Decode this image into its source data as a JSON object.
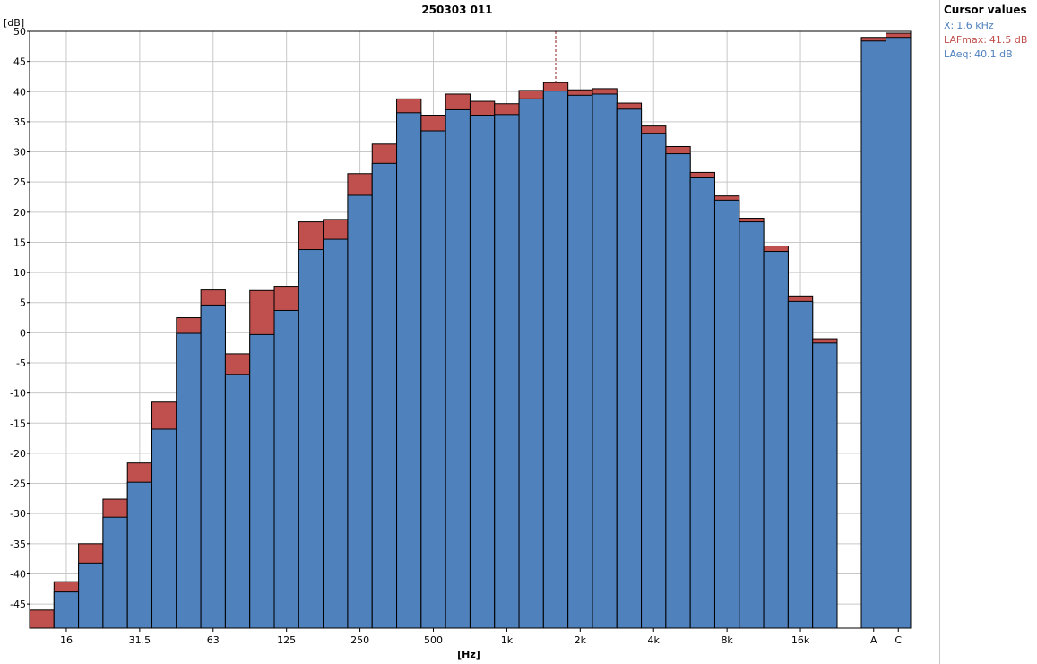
{
  "chart_data": {
    "type": "bar",
    "title": "250303 011",
    "ylabel": "[dB]",
    "xlabel": "[Hz]",
    "ylim": [
      -49,
      50
    ],
    "yticks": [
      50,
      45,
      40,
      35,
      30,
      25,
      20,
      15,
      10,
      5,
      0,
      -5,
      -10,
      -15,
      -20,
      -25,
      -30,
      -35,
      -40,
      -45
    ],
    "grid": true,
    "categories": [
      "12.5",
      "16",
      "20",
      "25",
      "31.5",
      "40",
      "50",
      "63",
      "80",
      "100",
      "125",
      "160",
      "200",
      "250",
      "315",
      "400",
      "500",
      "630",
      "800",
      "1k",
      "1.25k",
      "1.6k",
      "2k",
      "2.5k",
      "3.15k",
      "4k",
      "5k",
      "6.3k",
      "8k",
      "10k",
      "12.5k",
      "16k",
      "20k",
      "A",
      "C"
    ],
    "xtick_labels": [
      "16",
      "31.5",
      "63",
      "125",
      "250",
      "500",
      "1k",
      "2k",
      "4k",
      "8k",
      "16k",
      "A",
      "C"
    ],
    "series": [
      {
        "name": "LAFmax",
        "color": "#c0504d",
        "values": [
          -46.0,
          -41.3,
          -35.0,
          -27.6,
          -21.6,
          -11.5,
          2.5,
          7.1,
          -3.5,
          7.0,
          7.7,
          18.4,
          18.8,
          26.4,
          31.3,
          38.8,
          36.1,
          39.6,
          38.4,
          38.0,
          40.2,
          41.5,
          40.3,
          40.5,
          38.1,
          34.3,
          30.9,
          26.6,
          22.7,
          19.0,
          14.4,
          6.1,
          -1.0,
          49.0,
          49.7
        ]
      },
      {
        "name": "LAeq",
        "color": "#4f81bd",
        "values": [
          -49.5,
          -43.0,
          -38.2,
          -30.6,
          -24.8,
          -16.0,
          -0.1,
          4.6,
          -6.9,
          -0.3,
          3.7,
          13.8,
          15.5,
          22.8,
          28.1,
          36.5,
          33.5,
          37.0,
          36.1,
          36.2,
          38.8,
          40.1,
          39.4,
          39.6,
          37.1,
          33.1,
          29.7,
          25.7,
          22.0,
          18.4,
          13.5,
          5.2,
          -1.7,
          48.4,
          49.0
        ]
      }
    ]
  },
  "cursor": {
    "category": "1.6k",
    "title": "Cursor values",
    "x_label": "X:",
    "x_value": "1.6 kHz",
    "max_label": "LAFmax:",
    "max_value": "41.5 dB",
    "eq_label": "LAeq:",
    "eq_value": "40.1 dB"
  },
  "colors": {
    "lafmax": "#c0504d",
    "laeq": "#4f81bd",
    "cursor_x": "#4f81bd",
    "cursor_max": "#c0504d",
    "cursor_eq": "#4f81bd",
    "grid": "#c8c8c8"
  }
}
